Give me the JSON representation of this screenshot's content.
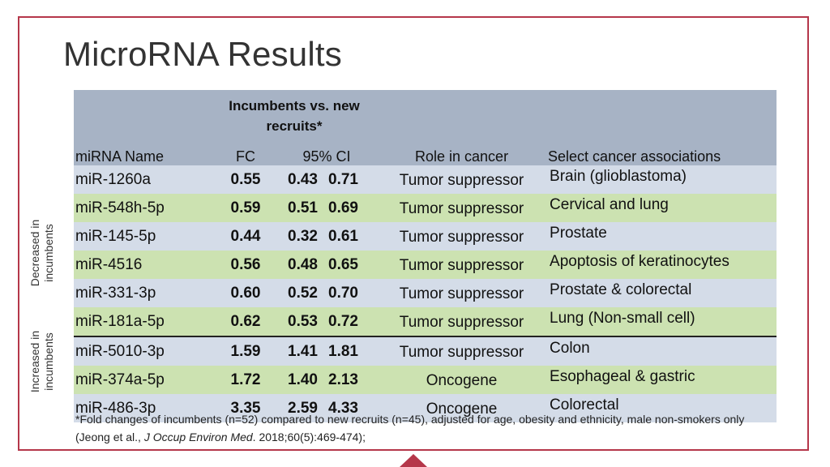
{
  "title": "MicroRNA Results",
  "header": {
    "group_label": "Incumbents vs. new recruits*",
    "col_name": "miRNA Name",
    "col_fc": "FC",
    "col_ci": "95% CI",
    "col_role": "Role in cancer",
    "col_assoc": "Select cancer associations"
  },
  "rows": [
    {
      "name": "miR-1260a",
      "fc": "0.55",
      "ci_low": "0.43",
      "ci_high": "0.71",
      "role": "Tumor suppressor",
      "assoc": "Brain (glioblastoma)"
    },
    {
      "name": "miR-548h-5p",
      "fc": "0.59",
      "ci_low": "0.51",
      "ci_high": "0.69",
      "role": "Tumor suppressor",
      "assoc": "Cervical and lung"
    },
    {
      "name": "miR-145-5p",
      "fc": "0.44",
      "ci_low": "0.32",
      "ci_high": "0.61",
      "role": "Tumor suppressor",
      "assoc": "Prostate"
    },
    {
      "name": "miR-4516",
      "fc": "0.56",
      "ci_low": "0.48",
      "ci_high": "0.65",
      "role": "Tumor suppressor",
      "assoc": "Apoptosis of keratinocytes"
    },
    {
      "name": "miR-331-3p",
      "fc": "0.60",
      "ci_low": "0.52",
      "ci_high": "0.70",
      "role": "Tumor suppressor",
      "assoc": "Prostate & colorectal"
    },
    {
      "name": "miR-181a-5p",
      "fc": "0.62",
      "ci_low": "0.53",
      "ci_high": "0.72",
      "role": "Tumor suppressor",
      "assoc": "Lung (Non-small cell)"
    },
    {
      "name": "miR-5010-3p",
      "fc": "1.59",
      "ci_low": "1.41",
      "ci_high": "1.81",
      "role": "Tumor suppressor",
      "assoc": "Colon"
    },
    {
      "name": "miR-374a-5p",
      "fc": "1.72",
      "ci_low": "1.40",
      "ci_high": "2.13",
      "role": "Oncogene",
      "assoc": "Esophageal & gastric"
    },
    {
      "name": "miR-486-3p",
      "fc": "3.35",
      "ci_low": "2.59",
      "ci_high": "4.33",
      "role": "Oncogene",
      "assoc": "Colorectal"
    }
  ],
  "side_labels": {
    "decreased": "Decreased in incumbents",
    "increased": "Increased in incumbents"
  },
  "footnote": {
    "text_before": "*Fold changes of incumbents (n=52) compared to new recruits (n=45), adjusted for age, obesity and ethnicity, male non-smokers only (Jeong et al., ",
    "journal": "J Occup Environ Med",
    "text_after": ". 2018;60(5):469-474);"
  },
  "colors": {
    "frame": "#b5374a",
    "header_bg": "#a7b3c5",
    "row_blue": "#d4dce8",
    "row_green": "#cce2b1"
  }
}
